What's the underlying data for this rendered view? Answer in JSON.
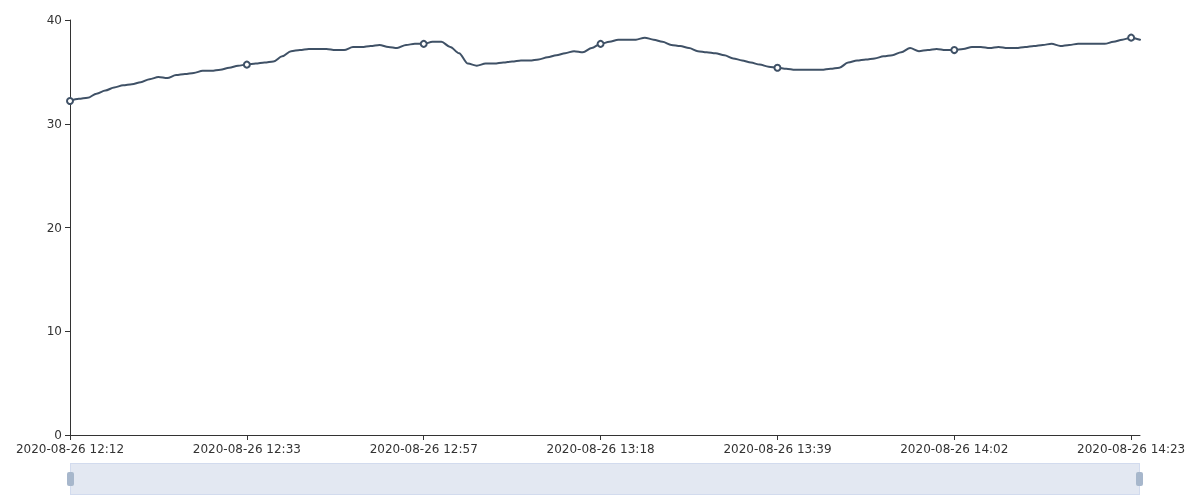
{
  "chart_data": {
    "type": "line",
    "categories": [
      "2020-08-26 12:12",
      null,
      null,
      null,
      null,
      null,
      null,
      null,
      null,
      null,
      null,
      null,
      null,
      null,
      null,
      null,
      null,
      null,
      null,
      null,
      "2020-08-26 12:33",
      null,
      null,
      null,
      null,
      null,
      null,
      null,
      null,
      null,
      null,
      null,
      null,
      null,
      null,
      null,
      null,
      null,
      null,
      null,
      "2020-08-26 12:57",
      null,
      null,
      null,
      null,
      null,
      null,
      null,
      null,
      null,
      null,
      null,
      null,
      null,
      null,
      null,
      null,
      null,
      null,
      null,
      "2020-08-26 13:18",
      null,
      null,
      null,
      null,
      null,
      null,
      null,
      null,
      null,
      null,
      null,
      null,
      null,
      null,
      null,
      null,
      null,
      null,
      null,
      "2020-08-26 13:39",
      null,
      null,
      null,
      null,
      null,
      null,
      null,
      null,
      null,
      null,
      null,
      null,
      null,
      null,
      null,
      null,
      null,
      null,
      null,
      "2020-08-26 14:02",
      null,
      null,
      null,
      null,
      null,
      null,
      null,
      null,
      null,
      null,
      null,
      null,
      null,
      null,
      null,
      null,
      null,
      null,
      null,
      "2020-08-26 14:23",
      null
    ],
    "series": [
      {
        "color": "#3f5166",
        "values": [
          32.2,
          32.4,
          32.5,
          32.9,
          33.2,
          33.5,
          33.7,
          33.8,
          34.0,
          34.3,
          34.5,
          34.4,
          34.7,
          34.8,
          34.9,
          35.1,
          35.1,
          35.2,
          35.4,
          35.6,
          35.7,
          35.8,
          35.9,
          36.0,
          36.5,
          37.0,
          37.1,
          37.2,
          37.2,
          37.2,
          37.1,
          37.1,
          37.4,
          37.4,
          37.5,
          37.6,
          37.4,
          37.3,
          37.6,
          37.7,
          37.7,
          37.9,
          37.9,
          37.4,
          36.8,
          35.8,
          35.6,
          35.8,
          35.8,
          35.9,
          36.0,
          36.1,
          36.1,
          36.2,
          36.4,
          36.6,
          36.8,
          37.0,
          36.9,
          37.3,
          37.7,
          37.9,
          38.1,
          38.1,
          38.1,
          38.3,
          38.1,
          37.9,
          37.6,
          37.5,
          37.3,
          37.0,
          36.9,
          36.8,
          36.6,
          36.3,
          36.1,
          35.9,
          35.7,
          35.5,
          35.4,
          35.3,
          35.2,
          35.2,
          35.2,
          35.2,
          35.3,
          35.4,
          35.9,
          36.1,
          36.2,
          36.3,
          36.5,
          36.6,
          36.9,
          37.3,
          37.0,
          37.1,
          37.2,
          37.1,
          37.1,
          37.2,
          37.4,
          37.4,
          37.3,
          37.4,
          37.3,
          37.3,
          37.4,
          37.5,
          37.6,
          37.7,
          37.5,
          37.6,
          37.7,
          37.7,
          37.7,
          37.7,
          37.9,
          38.1,
          38.3,
          38.1
        ]
      }
    ],
    "ylim": [
      0,
      40
    ],
    "yticks": [
      0,
      10,
      20,
      30,
      40
    ],
    "grid": false,
    "line_style": "solid"
  }
}
